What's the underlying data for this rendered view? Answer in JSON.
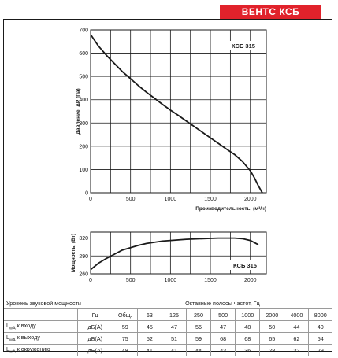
{
  "brand_label": "ВЕНТС КСБ",
  "colors": {
    "brand": "#e1222b",
    "curve": "#1a1a1a"
  },
  "chart_data": [
    {
      "type": "line",
      "ylabel": "Давление, ΔР (Па)",
      "xlabel": "Производительность, (м³/ч)",
      "xlim": [
        0,
        2200
      ],
      "ylim": [
        0,
        700
      ],
      "x_ticks": [
        0,
        500,
        1000,
        1500,
        2000
      ],
      "y_ticks": [
        0,
        100,
        200,
        300,
        400,
        500,
        600,
        700
      ],
      "grid": true,
      "series": [
        {
          "name": "КСБ 315",
          "x": [
            0,
            100,
            200,
            300,
            400,
            500,
            600,
            700,
            800,
            900,
            1000,
            1100,
            1200,
            1300,
            1400,
            1500,
            1600,
            1700,
            1800,
            1900,
            2000,
            2050,
            2100,
            2150
          ],
          "y": [
            680,
            630,
            590,
            555,
            520,
            490,
            460,
            432,
            406,
            380,
            355,
            332,
            308,
            284,
            260,
            236,
            212,
            188,
            165,
            135,
            95,
            65,
            30,
            0
          ]
        }
      ]
    },
    {
      "type": "line",
      "ylabel": "Мощность, (Вт)",
      "xlim": [
        0,
        2200
      ],
      "ylim": [
        260,
        330
      ],
      "x_ticks": [
        0,
        500,
        1000,
        1500,
        2000
      ],
      "y_ticks": [
        260,
        290,
        320
      ],
      "grid": true,
      "series": [
        {
          "name": "КСБ 315",
          "x": [
            0,
            100,
            200,
            300,
            400,
            500,
            600,
            700,
            800,
            900,
            1000,
            1200,
            1400,
            1600,
            1800,
            1900,
            2000,
            2100
          ],
          "y": [
            267,
            278,
            286,
            293,
            300,
            304,
            308,
            311,
            313,
            315,
            316,
            318,
            319,
            320,
            320,
            319,
            316,
            309
          ]
        }
      ]
    }
  ],
  "sound_table": {
    "title": "Уровень звуковой мощности",
    "band_header": "Октавные полосы частот, Гц",
    "unit_header": "Гц",
    "columns": [
      "Общ.",
      "63",
      "125",
      "250",
      "500",
      "1000",
      "2000",
      "4000",
      "8000"
    ],
    "rows": [
      {
        "prefix": "L",
        "sub": "wA",
        "suffix": " к входу",
        "unit": "дБ(A)",
        "values": [
          "59",
          "45",
          "47",
          "56",
          "47",
          "48",
          "50",
          "44",
          "40"
        ]
      },
      {
        "prefix": "L",
        "sub": "wA",
        "suffix": " к выходу",
        "unit": "дБ(A)",
        "values": [
          "75",
          "52",
          "51",
          "59",
          "68",
          "68",
          "65",
          "62",
          "54"
        ]
      },
      {
        "prefix": "L",
        "sub": "wA",
        "suffix": " к окружению",
        "unit": "дБ(A)",
        "values": [
          "48",
          "41",
          "41",
          "44",
          "43",
          "36",
          "28",
          "32",
          "29"
        ]
      }
    ]
  }
}
